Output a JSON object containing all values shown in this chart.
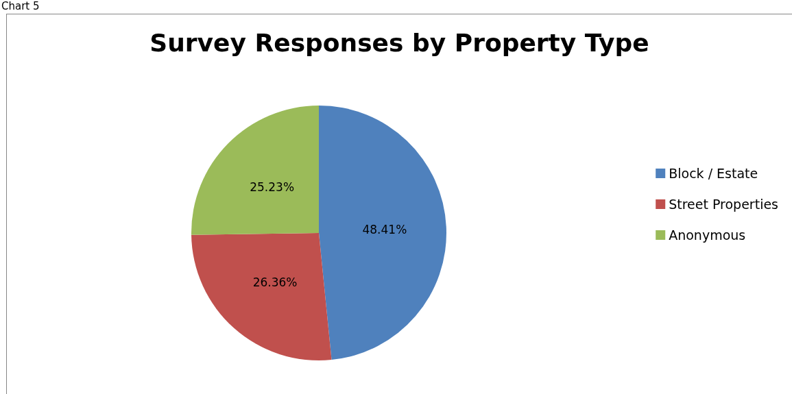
{
  "chart_data": {
    "type": "pie",
    "title": "Survey Responses by Property Type",
    "annotations": [
      "Chart 5"
    ],
    "categories": [
      "Block / Estate",
      "Street Properties",
      "Anonymous"
    ],
    "values": [
      48.41,
      26.36,
      25.23
    ],
    "colors": [
      "#4f81bd",
      "#c0504d",
      "#9bbb59"
    ],
    "value_labels": [
      "48.41%",
      "26.36%",
      "25.23%"
    ],
    "legend": "right"
  }
}
